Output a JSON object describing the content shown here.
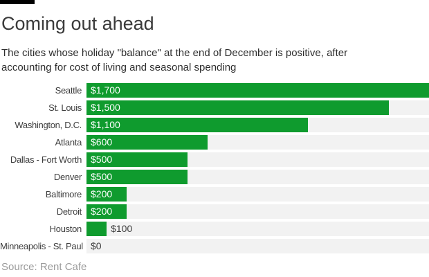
{
  "header": {
    "title": "Coming out ahead",
    "subtitle": "The cities whose holiday \"balance\" at the end of December is positive, after accounting for cost of living and seasonal spending",
    "brand_bar_color": "#000000"
  },
  "chart_data": {
    "type": "bar",
    "orientation": "horizontal",
    "title": "Coming out ahead",
    "categories": [
      "Seattle",
      "St. Louis",
      "Washington, D.C.",
      "Atlanta",
      "Dallas - Fort Worth",
      "Denver",
      "Baltimore",
      "Detroit",
      "Houston",
      "Minneapolis - St. Paul"
    ],
    "values": [
      1700,
      1500,
      1100,
      600,
      500,
      500,
      200,
      200,
      100,
      0
    ],
    "value_labels": [
      "$1,700",
      "$1,500",
      "$1,100",
      "$600",
      "$500",
      "$500",
      "$200",
      "$200",
      "$100",
      "$0"
    ],
    "xlim": [
      0,
      1700
    ],
    "grid": false,
    "legend": false,
    "bar_color": "#0f9b2e",
    "track_color": "#f2f2f2"
  },
  "footer": {
    "source": "Source: Rent Cafe"
  }
}
